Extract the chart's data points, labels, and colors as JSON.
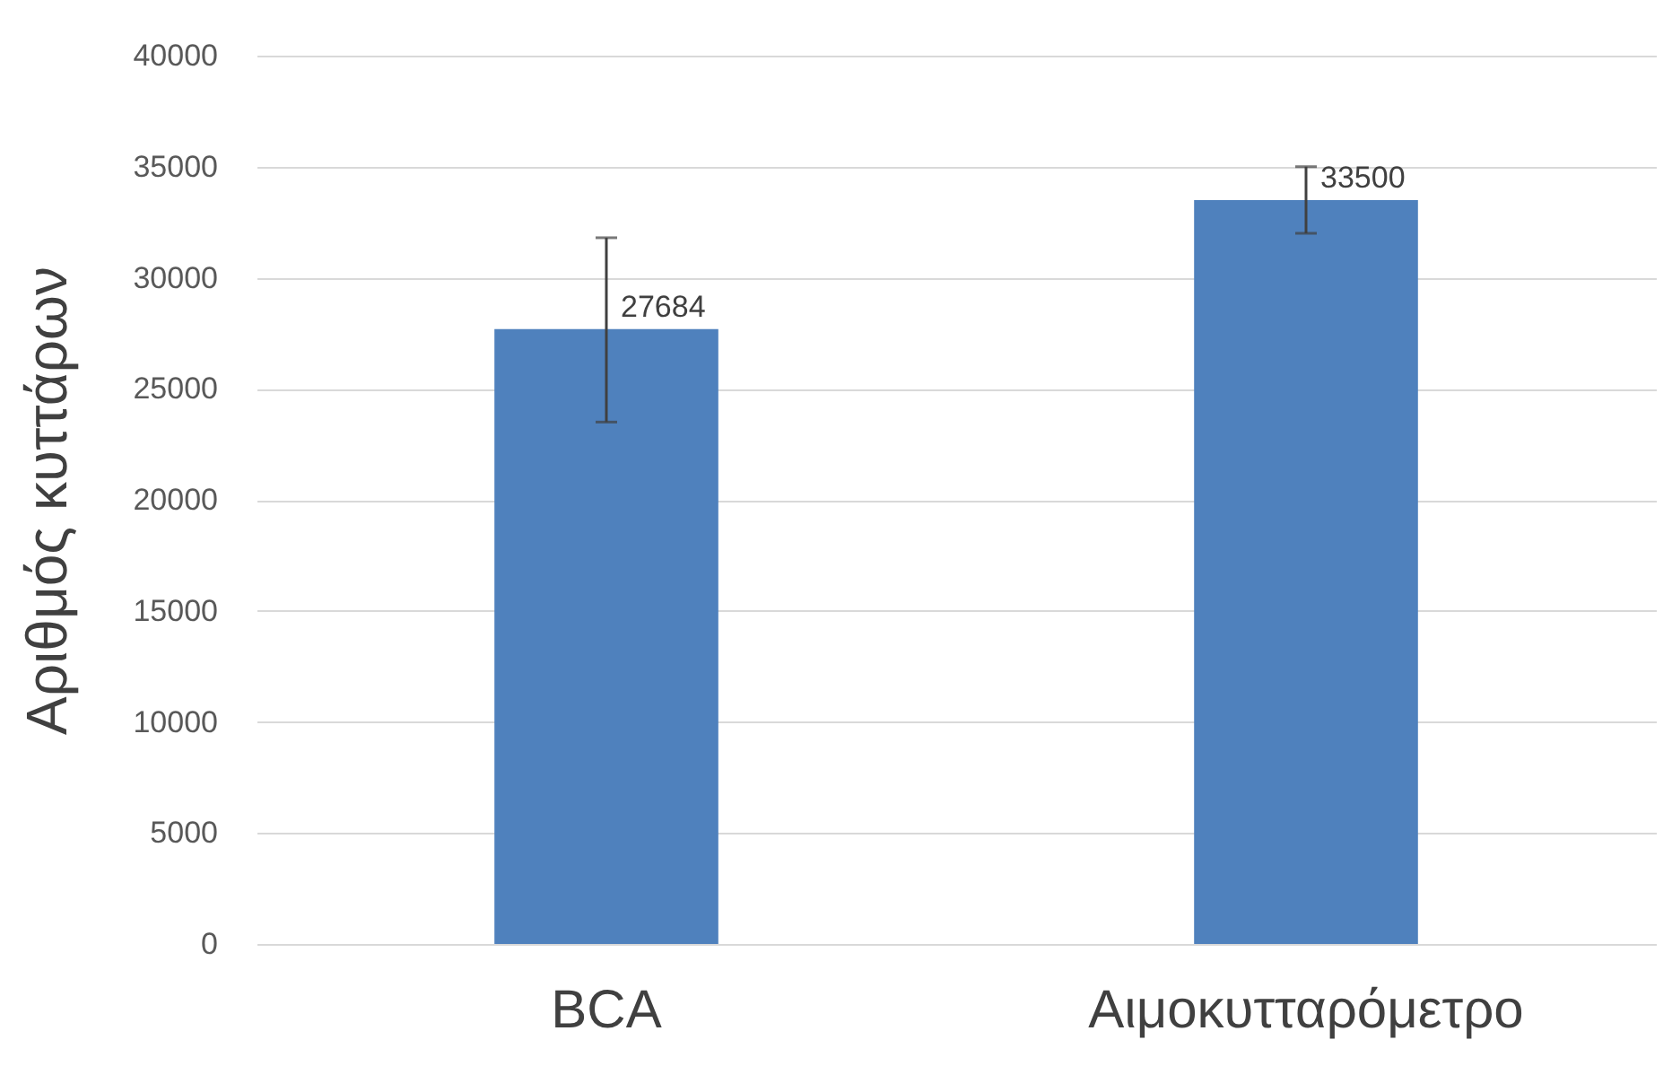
{
  "chart_data": {
    "type": "bar",
    "ylabel": "Αριθμός κυττάρων",
    "categories": [
      "BCA",
      "Αιμοκυτταρόμετρο"
    ],
    "values": [
      27684,
      33500
    ],
    "color": "#4f81bd",
    "errors": [
      [
        23500,
        31800
      ],
      [
        32000,
        35000
      ]
    ],
    "data_labels": true,
    "ylim": [
      0,
      40000
    ],
    "yticks": [
      0,
      5000,
      10000,
      15000,
      20000,
      25000,
      30000,
      35000,
      40000
    ],
    "grid": "y"
  }
}
